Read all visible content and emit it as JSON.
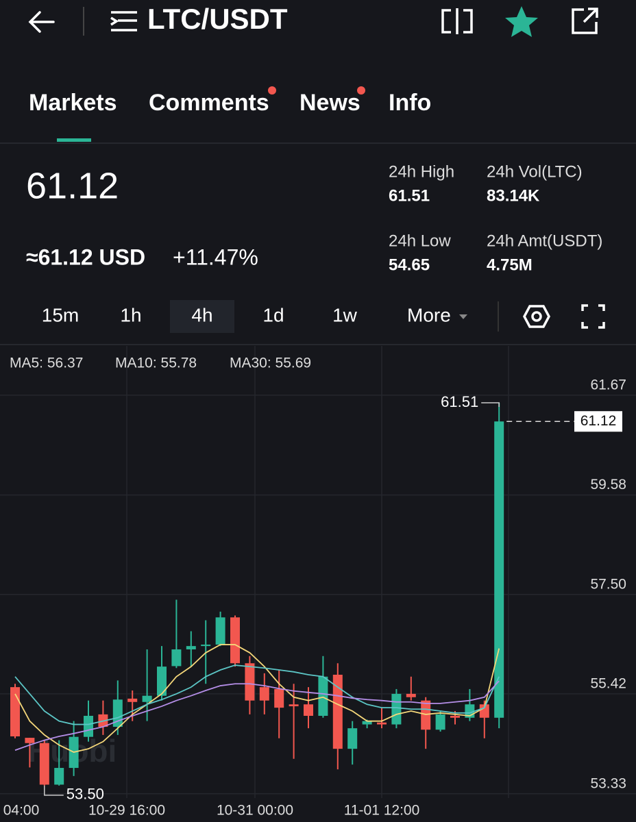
{
  "header": {
    "title": "LTC/USDT"
  },
  "tabs": [
    "Markets",
    "Comments",
    "News",
    "Info"
  ],
  "price": {
    "last": "61.12",
    "usd": "≈61.12 USD",
    "change": "+11.47%"
  },
  "stats": [
    {
      "label": "24h High",
      "value": "61.51"
    },
    {
      "label": "24h Vol(LTC)",
      "value": "83.14K"
    },
    {
      "label": "24h Low",
      "value": "54.65"
    },
    {
      "label": "24h Amt(USDT)",
      "value": "4.75M"
    }
  ],
  "intervals": [
    "15m",
    "1h",
    "4h",
    "1d",
    "1w",
    "More"
  ],
  "chart_data": {
    "type": "candlestick",
    "up_color": "#2bb596",
    "down_color": "#f2574f",
    "watermark": "Huobi",
    "open": [
      55.56,
      54.5,
      54.39,
      53.52,
      53.87,
      54.52,
      54.99,
      54.73,
      55.32,
      55.25,
      55.38,
      56.0,
      56.35,
      56.42,
      56.45,
      57.02,
      56.06,
      55.56,
      55.52,
      55.2,
      55.2,
      54.96,
      55.82,
      54.27,
      54.78,
      54.82,
      54.78,
      55.42,
      55.28,
      54.67,
      54.96,
      54.92,
      55.2,
      54.92
    ],
    "high": [
      55.63,
      54.5,
      54.45,
      54.45,
      54.85,
      55.28,
      55.28,
      55.7,
      55.49,
      56.35,
      56.42,
      57.39,
      56.73,
      56.96,
      57.14,
      57.06,
      56.21,
      55.85,
      55.92,
      55.63,
      55.56,
      56.21,
      56.06,
      54.85,
      54.88,
      55.13,
      55.52,
      55.78,
      55.35,
      55.06,
      55.06,
      55.52,
      55.28,
      61.51
    ],
    "low": [
      54.49,
      53.88,
      53.5,
      53.5,
      53.7,
      54.42,
      54.56,
      54.56,
      54.85,
      54.85,
      55.28,
      55.96,
      56.0,
      55.63,
      56.42,
      55.99,
      54.99,
      54.99,
      54.49,
      54.06,
      54.7,
      54.92,
      53.84,
      53.94,
      54.7,
      54.7,
      54.7,
      55.28,
      54.27,
      54.63,
      54.78,
      54.85,
      54.49,
      54.7
    ],
    "close": [
      54.53,
      54.39,
      53.52,
      53.87,
      54.52,
      54.96,
      54.73,
      55.3,
      55.25,
      55.38,
      55.99,
      56.35,
      56.42,
      56.45,
      57.02,
      56.06,
      55.28,
      55.28,
      55.13,
      55.16,
      54.96,
      55.78,
      54.27,
      54.7,
      54.85,
      54.78,
      55.42,
      55.35,
      54.67,
      54.99,
      54.92,
      55.2,
      54.92,
      61.12
    ],
    "series": [
      {
        "name": "MA5: 56.37",
        "color": "#f5d77a",
        "values": [
          55.42,
          54.85,
          54.56,
          54.35,
          54.2,
          54.27,
          54.42,
          54.7,
          54.99,
          55.2,
          55.42,
          55.78,
          55.99,
          56.28,
          56.45,
          56.45,
          56.28,
          55.99,
          55.63,
          55.35,
          55.28,
          55.35,
          55.2,
          55.06,
          54.85,
          54.85,
          54.99,
          55.06,
          54.99,
          55.02,
          54.99,
          54.96,
          55.13,
          56.37
        ]
      },
      {
        "name": "MA10: 55.78",
        "color": "#5cc6c6",
        "values": [
          55.78,
          55.42,
          55.06,
          54.85,
          54.78,
          54.78,
          54.85,
          54.92,
          55.06,
          55.2,
          55.3,
          55.42,
          55.56,
          55.78,
          55.92,
          56.02,
          55.99,
          55.96,
          55.92,
          55.88,
          55.82,
          55.78,
          55.56,
          55.35,
          55.2,
          55.13,
          55.13,
          55.1,
          55.1,
          55.06,
          55.02,
          55.02,
          55.13,
          55.78
        ]
      },
      {
        "name": "MA30: 55.69",
        "color": "#b58ee8",
        "values": [
          54.24,
          54.35,
          54.45,
          54.53,
          54.59,
          54.66,
          54.73,
          54.85,
          54.96,
          55.06,
          55.16,
          55.28,
          55.38,
          55.49,
          55.59,
          55.63,
          55.63,
          55.59,
          55.53,
          55.48,
          55.45,
          55.42,
          55.38,
          55.33,
          55.3,
          55.28,
          55.25,
          55.25,
          55.22,
          55.22,
          55.25,
          55.28,
          55.35,
          55.69
        ]
      }
    ],
    "ylim": [
      53.24,
      62.7
    ],
    "yticks": [
      61.67,
      59.58,
      {
        "value": 57.5,
        "label": "57.50"
      },
      55.42,
      53.33
    ],
    "xtick_labels": [
      "04:00",
      "10-29 16:00",
      "10-31 00:00",
      "11-01 12:00"
    ],
    "max_label": 61.51,
    "min_label": {
      "value": 53.5,
      "label": "53.50"
    },
    "last_price": 61.12,
    "grid": true
  }
}
